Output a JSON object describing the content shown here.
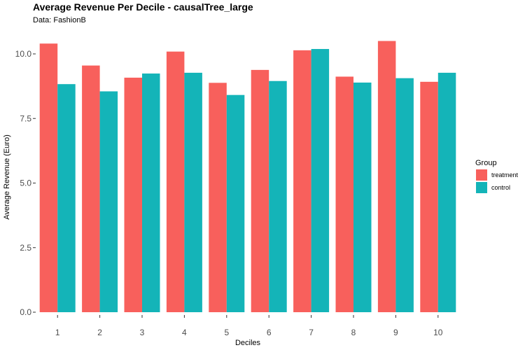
{
  "chart_data": {
    "type": "bar",
    "title": "Average Revenue Per Decile - causalTree_large",
    "subtitle": "Data: FashionB",
    "xlabel": "Deciles",
    "ylabel": "Average Revenue (Euro)",
    "categories": [
      "1",
      "2",
      "3",
      "4",
      "5",
      "6",
      "7",
      "8",
      "9",
      "10"
    ],
    "yticks": [
      "0.0",
      "2.5",
      "5.0",
      "7.5",
      "10.0"
    ],
    "ylim": [
      0,
      10.9
    ],
    "grid": false,
    "legend": {
      "title": "Group",
      "position": "right"
    },
    "series": [
      {
        "name": "treatment",
        "color": "#f8605c",
        "values": [
          10.4,
          9.55,
          9.08,
          10.09,
          8.88,
          9.38,
          10.14,
          9.12,
          10.5,
          8.92
        ]
      },
      {
        "name": "control",
        "color": "#14b4b8",
        "values": [
          8.83,
          8.55,
          9.24,
          9.27,
          8.41,
          8.95,
          10.19,
          8.89,
          9.06,
          9.27
        ]
      }
    ]
  }
}
